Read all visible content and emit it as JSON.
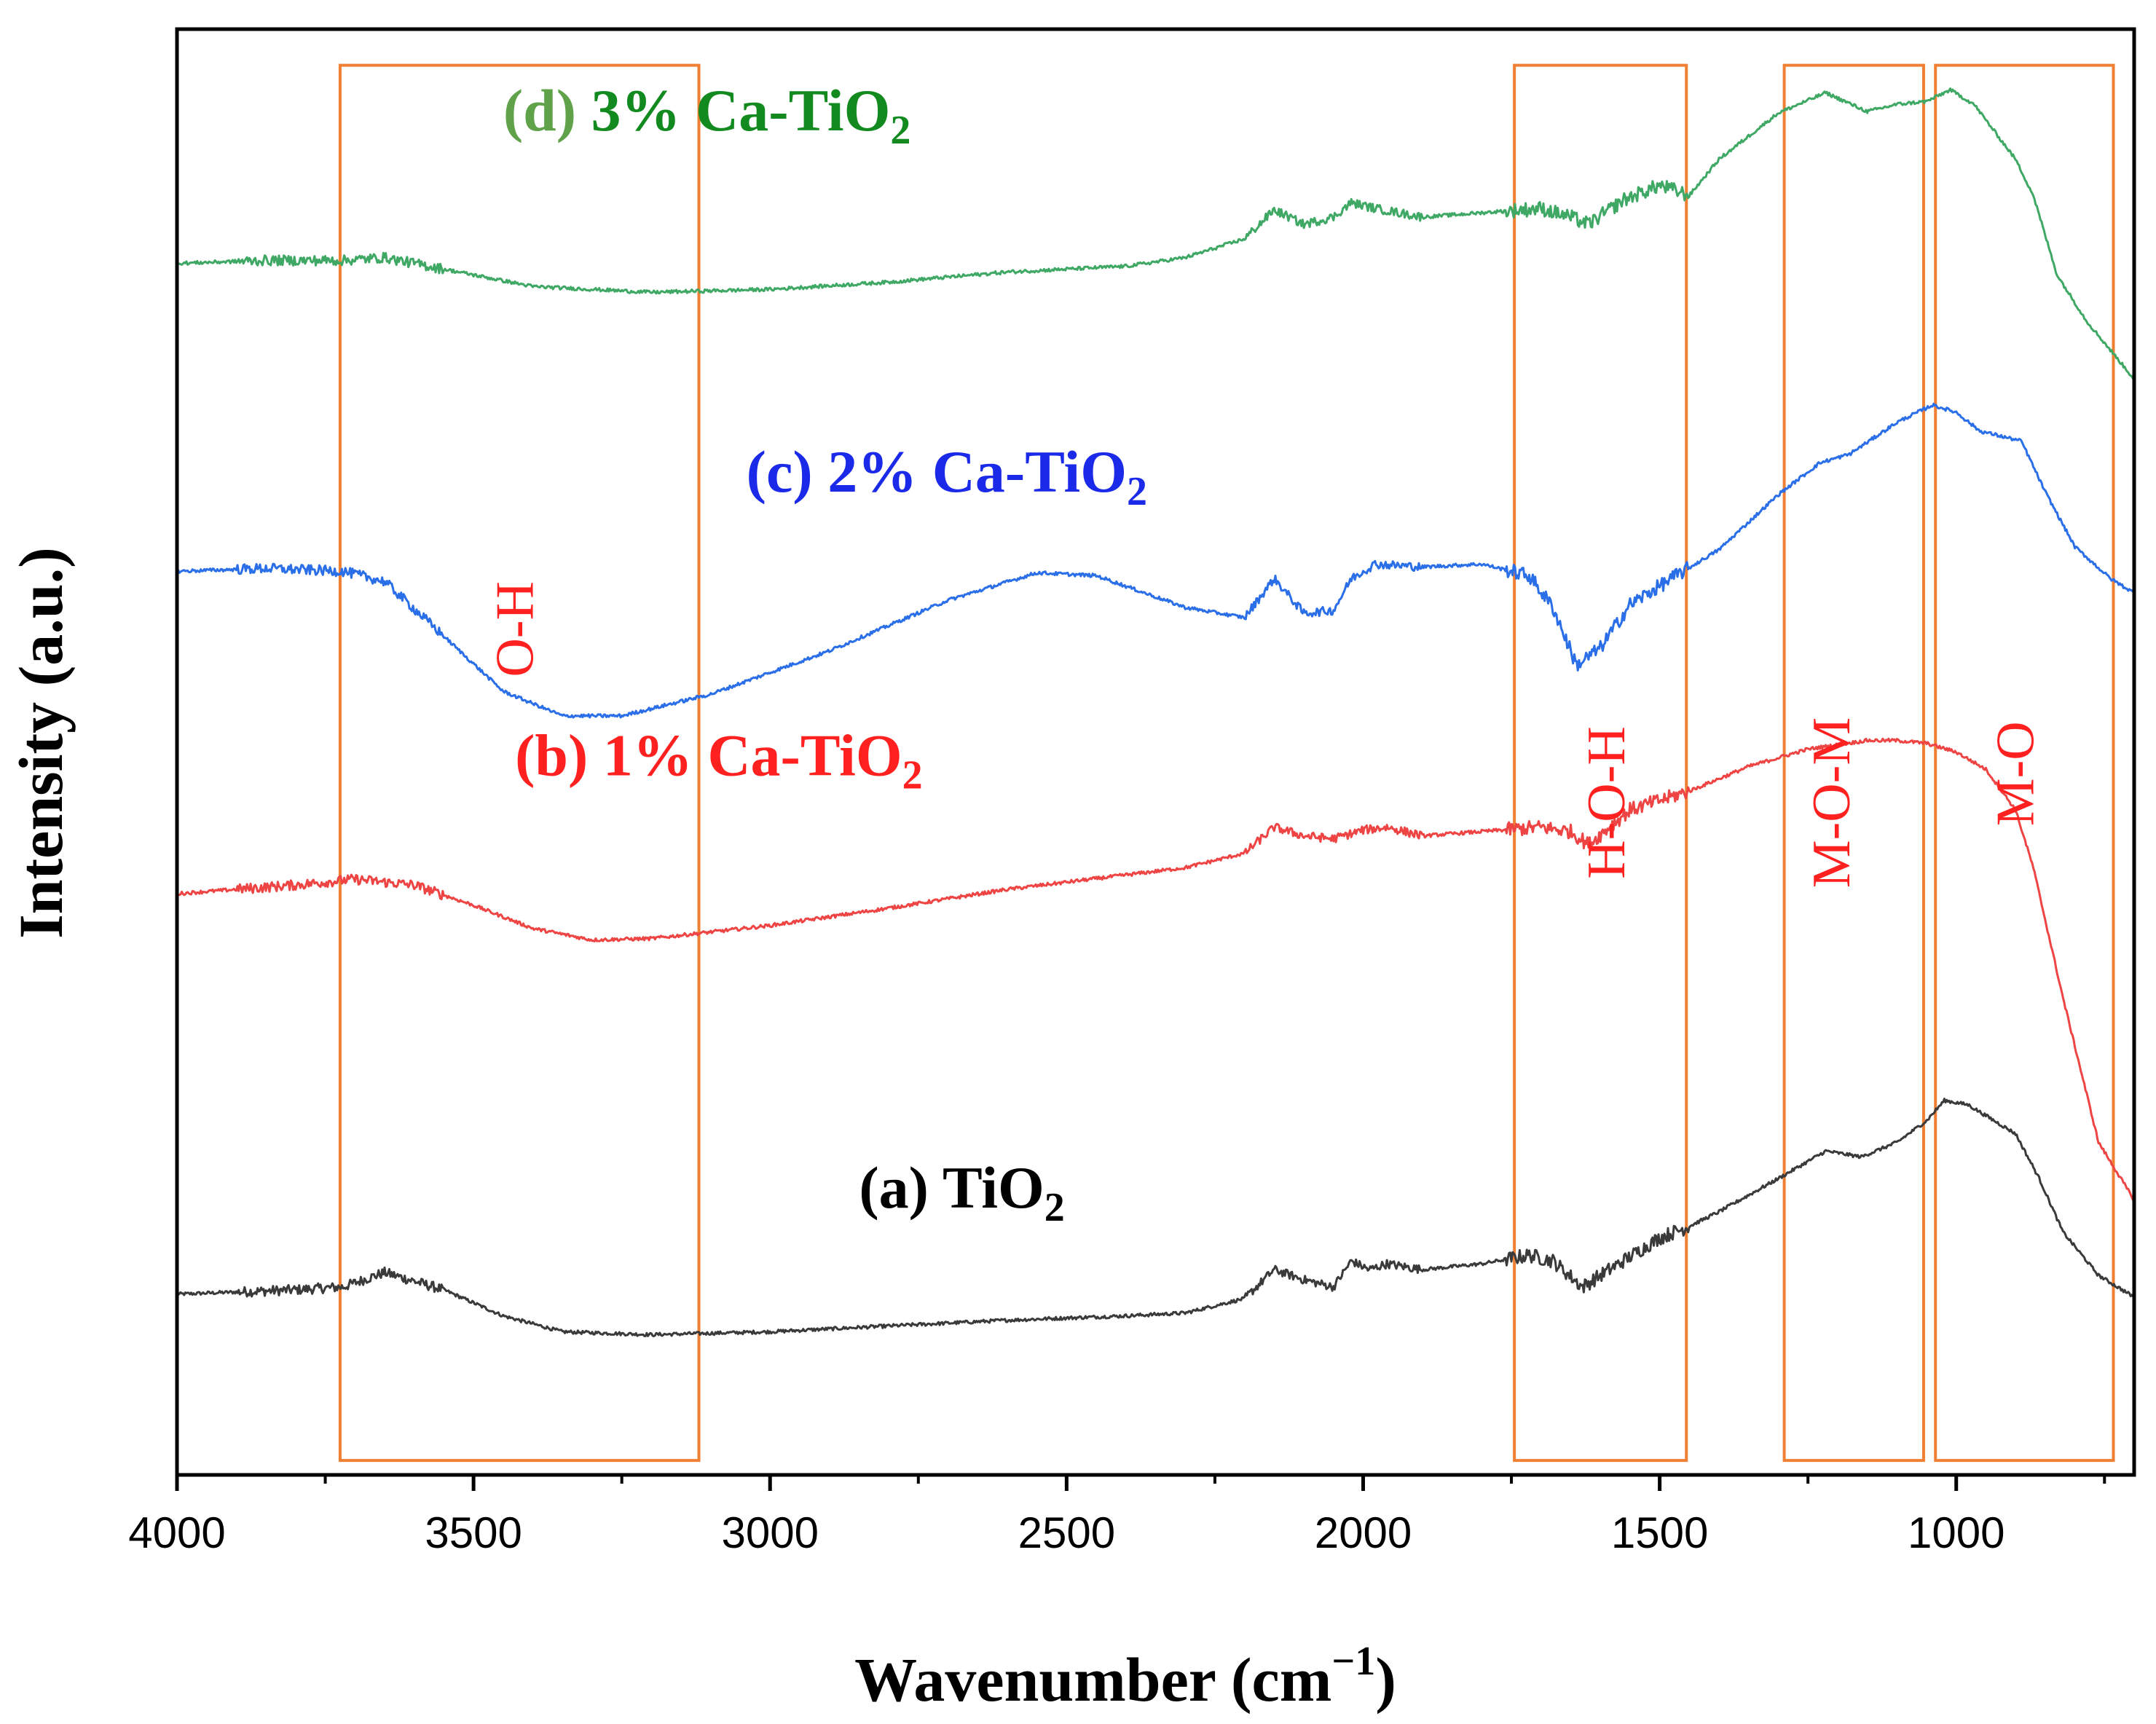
{
  "chart_data": {
    "type": "line",
    "xlabel": "Wavenumber (cm",
    "xlabel_sup": "−1",
    "xlabel_close": ")",
    "ylabel": "Intensity (a.u.)",
    "xlim": [
      4000,
      700
    ],
    "ylim": [
      0,
      10
    ],
    "x_ticks": [
      {
        "value": 4000,
        "label": "4000"
      },
      {
        "value": 3500,
        "label": "3500"
      },
      {
        "value": 3000,
        "label": "3000"
      },
      {
        "value": 2500,
        "label": "2500"
      },
      {
        "value": 2000,
        "label": "2000"
      },
      {
        "value": 1500,
        "label": "1500"
      },
      {
        "value": 1000,
        "label": "1000"
      }
    ],
    "series": [
      {
        "id": "a",
        "prefix": "(a)",
        "name": "TiO",
        "sub": "2",
        "tail": "",
        "color": "#3a3a3a",
        "label_color": "#000000",
        "label_at": [
          2850,
          1.85
        ],
        "points": [
          [
            4000,
            1.25
          ],
          [
            3800,
            1.28
          ],
          [
            3720,
            1.3
          ],
          [
            3650,
            1.4
          ],
          [
            3550,
            1.28
          ],
          [
            3450,
            1.1
          ],
          [
            3350,
            0.99
          ],
          [
            3200,
            0.97
          ],
          [
            3000,
            0.99
          ],
          [
            2800,
            1.03
          ],
          [
            2600,
            1.07
          ],
          [
            2400,
            1.1
          ],
          [
            2300,
            1.12
          ],
          [
            2200,
            1.22
          ],
          [
            2150,
            1.42
          ],
          [
            2100,
            1.35
          ],
          [
            2050,
            1.3
          ],
          [
            2020,
            1.48
          ],
          [
            1990,
            1.42
          ],
          [
            1960,
            1.46
          ],
          [
            1900,
            1.42
          ],
          [
            1800,
            1.46
          ],
          [
            1720,
            1.52
          ],
          [
            1680,
            1.48
          ],
          [
            1630,
            1.3
          ],
          [
            1600,
            1.38
          ],
          [
            1500,
            1.64
          ],
          [
            1450,
            1.72
          ],
          [
            1400,
            1.82
          ],
          [
            1300,
            2.05
          ],
          [
            1220,
            2.24
          ],
          [
            1160,
            2.2
          ],
          [
            1100,
            2.3
          ],
          [
            1050,
            2.45
          ],
          [
            1020,
            2.59
          ],
          [
            980,
            2.56
          ],
          [
            900,
            2.36
          ],
          [
            860,
            2.05
          ],
          [
            820,
            1.68
          ],
          [
            760,
            1.38
          ],
          [
            700,
            1.23
          ]
        ]
      },
      {
        "id": "b",
        "prefix": "(b)",
        "name": "1% Ca-TiO",
        "sub": "2",
        "tail": "",
        "color": "#ee4444",
        "label_color": "#ff2020",
        "label_at": [
          3430,
          4.84
        ],
        "points": [
          [
            4000,
            4.02
          ],
          [
            3800,
            4.08
          ],
          [
            3700,
            4.12
          ],
          [
            3600,
            4.08
          ],
          [
            3500,
            3.94
          ],
          [
            3400,
            3.78
          ],
          [
            3300,
            3.7
          ],
          [
            3200,
            3.71
          ],
          [
            3000,
            3.8
          ],
          [
            2800,
            3.92
          ],
          [
            2600,
            4.05
          ],
          [
            2400,
            4.15
          ],
          [
            2300,
            4.2
          ],
          [
            2200,
            4.3
          ],
          [
            2150,
            4.48
          ],
          [
            2100,
            4.42
          ],
          [
            2050,
            4.4
          ],
          [
            2000,
            4.46
          ],
          [
            1960,
            4.48
          ],
          [
            1900,
            4.42
          ],
          [
            1800,
            4.45
          ],
          [
            1700,
            4.48
          ],
          [
            1650,
            4.45
          ],
          [
            1620,
            4.36
          ],
          [
            1550,
            4.6
          ],
          [
            1450,
            4.73
          ],
          [
            1350,
            4.9
          ],
          [
            1250,
            5.02
          ],
          [
            1150,
            5.08
          ],
          [
            1100,
            5.08
          ],
          [
            1050,
            5.06
          ],
          [
            1000,
            5.0
          ],
          [
            950,
            4.88
          ],
          [
            900,
            4.6
          ],
          [
            870,
            4.2
          ],
          [
            820,
            3.3
          ],
          [
            760,
            2.3
          ],
          [
            700,
            1.9
          ]
        ]
      },
      {
        "id": "c",
        "prefix": "(c)",
        "name": "2% Ca-TiO",
        "sub": "2",
        "tail": "",
        "color": "#2a6ee8",
        "label_color": "#1a2ae8",
        "label_at": [
          3040,
          6.8
        ],
        "points": [
          [
            4000,
            6.25
          ],
          [
            3850,
            6.27
          ],
          [
            3720,
            6.25
          ],
          [
            3650,
            6.18
          ],
          [
            3550,
            5.8
          ],
          [
            3450,
            5.42
          ],
          [
            3350,
            5.25
          ],
          [
            3250,
            5.25
          ],
          [
            3100,
            5.4
          ],
          [
            2900,
            5.7
          ],
          [
            2700,
            6.05
          ],
          [
            2550,
            6.24
          ],
          [
            2450,
            6.22
          ],
          [
            2300,
            6.0
          ],
          [
            2200,
            5.93
          ],
          [
            2150,
            6.2
          ],
          [
            2100,
            5.96
          ],
          [
            2050,
            5.98
          ],
          [
            2020,
            6.2
          ],
          [
            1980,
            6.3
          ],
          [
            1900,
            6.28
          ],
          [
            1800,
            6.3
          ],
          [
            1720,
            6.22
          ],
          [
            1680,
            6.0
          ],
          [
            1640,
            5.6
          ],
          [
            1600,
            5.72
          ],
          [
            1550,
            6.02
          ],
          [
            1480,
            6.2
          ],
          [
            1400,
            6.4
          ],
          [
            1300,
            6.78
          ],
          [
            1230,
            7.0
          ],
          [
            1180,
            7.06
          ],
          [
            1100,
            7.28
          ],
          [
            1040,
            7.4
          ],
          [
            1000,
            7.35
          ],
          [
            960,
            7.22
          ],
          [
            890,
            7.15
          ],
          [
            850,
            6.8
          ],
          [
            800,
            6.42
          ],
          [
            740,
            6.2
          ],
          [
            700,
            6.1
          ]
        ]
      },
      {
        "id": "d",
        "prefix": "(d)",
        "name": "3% Ca-TiO",
        "sub": "2",
        "tail": "",
        "color": "#3fa864",
        "label_color": "#128a20",
        "label_at": [
          3450,
          9.3
        ],
        "points": [
          [
            4000,
            8.38
          ],
          [
            3850,
            8.4
          ],
          [
            3720,
            8.4
          ],
          [
            3650,
            8.42
          ],
          [
            3500,
            8.3
          ],
          [
            3400,
            8.22
          ],
          [
            3200,
            8.18
          ],
          [
            3000,
            8.2
          ],
          [
            2800,
            8.25
          ],
          [
            2600,
            8.32
          ],
          [
            2400,
            8.36
          ],
          [
            2300,
            8.42
          ],
          [
            2200,
            8.55
          ],
          [
            2150,
            8.75
          ],
          [
            2100,
            8.65
          ],
          [
            2050,
            8.7
          ],
          [
            2020,
            8.8
          ],
          [
            1980,
            8.76
          ],
          [
            1900,
            8.7
          ],
          [
            1800,
            8.73
          ],
          [
            1700,
            8.76
          ],
          [
            1650,
            8.7
          ],
          [
            1620,
            8.65
          ],
          [
            1560,
            8.82
          ],
          [
            1500,
            8.92
          ],
          [
            1450,
            8.85
          ],
          [
            1400,
            9.1
          ],
          [
            1300,
            9.42
          ],
          [
            1220,
            9.56
          ],
          [
            1150,
            9.43
          ],
          [
            1100,
            9.48
          ],
          [
            1050,
            9.5
          ],
          [
            1010,
            9.58
          ],
          [
            970,
            9.48
          ],
          [
            900,
            9.1
          ],
          [
            870,
            8.85
          ],
          [
            830,
            8.3
          ],
          [
            780,
            7.98
          ],
          [
            700,
            7.58
          ]
        ]
      }
    ],
    "regions": [
      {
        "label": "O-H",
        "from": 3725,
        "to": 3120,
        "label_x": 3400,
        "label_y": 5.85
      },
      {
        "label": "H-O-H",
        "from": 1745,
        "to": 1455,
        "label_x": 1560,
        "label_y": 4.65
      },
      {
        "label": "M-O-M",
        "from": 1290,
        "to": 1055,
        "label_x": 1180,
        "label_y": 4.65
      },
      {
        "label": "M-O",
        "from": 1035,
        "to": 735,
        "label_x": 870,
        "label_y": 4.85
      }
    ],
    "region_color": "#ef7f32"
  }
}
